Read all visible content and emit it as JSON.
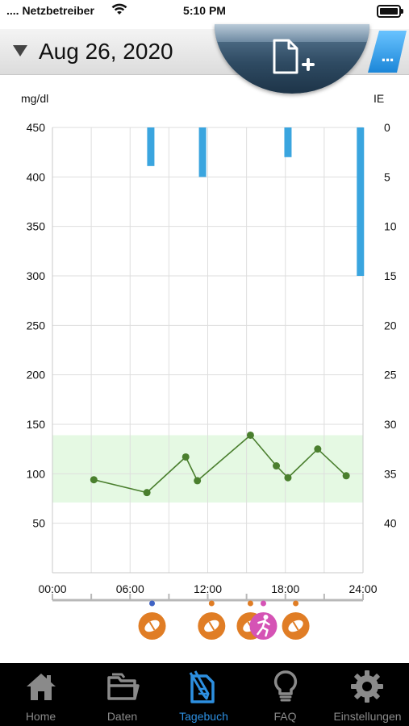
{
  "status_bar": {
    "carrier": ".... Netzbetreiber",
    "time": "5:10 PM"
  },
  "header": {
    "date": "Aug 26, 2020",
    "new_entry_icon": "new-document-plus-icon",
    "more_label": "..."
  },
  "colors": {
    "insulin_bar": "#3aa5df",
    "glucose_line": "#4a7f2e",
    "target_range": "#e5f9e3",
    "food_marker": "#e07d25",
    "activity_marker": "#d553b5",
    "tab_active": "#2d8fe0"
  },
  "chart_data": {
    "type": "line",
    "left_unit": "mg/dl",
    "right_unit": "IE",
    "y_ticks": [
      450,
      400,
      350,
      300,
      250,
      200,
      150,
      100,
      50
    ],
    "y_range": [
      0,
      450
    ],
    "right_ticks": [
      0,
      5,
      10,
      15,
      20,
      25,
      30,
      35,
      40
    ],
    "right_range": [
      0,
      45
    ],
    "right_axis_inverted": true,
    "x_ticks": [
      "00:00",
      "06:00",
      "12:00",
      "18:00",
      "24:00"
    ],
    "x_range_hours": [
      0,
      24
    ],
    "grid": true,
    "target_range": [
      71,
      139
    ],
    "series": [
      {
        "type": "line",
        "x_hours": [
          3.2,
          7.3,
          10.3,
          11.2,
          15.3,
          17.3,
          18.2,
          20.5,
          22.7
        ],
        "values": [
          94,
          81,
          117,
          93,
          139,
          108,
          96,
          125,
          98
        ]
      },
      {
        "type": "bar",
        "axis": "right",
        "x_hours": [
          7.6,
          11.6,
          18.2,
          23.8
        ],
        "values": [
          3.9,
          5,
          3,
          15
        ]
      }
    ],
    "timeline_events": [
      {
        "hour": 7.7,
        "kind": "food",
        "icon": "food-icon",
        "dot": "blue"
      },
      {
        "hour": 12.3,
        "kind": "food",
        "icon": "food-icon",
        "dot": "orange"
      },
      {
        "hour": 15.3,
        "kind": "food",
        "icon": "food-icon",
        "dot": "orange"
      },
      {
        "hour": 16.3,
        "kind": "activity",
        "icon": "running-icon",
        "dot": "pink"
      },
      {
        "hour": 18.8,
        "kind": "food",
        "icon": "food-icon",
        "dot": "orange"
      }
    ]
  },
  "tab_bar": {
    "items": [
      {
        "label": "Home",
        "icon": "home-icon",
        "active": false
      },
      {
        "label": "Daten",
        "icon": "folders-icon",
        "active": false
      },
      {
        "label": "Tagebuch",
        "icon": "diary-edit-icon",
        "active": true
      },
      {
        "label": "FAQ",
        "icon": "lightbulb-icon",
        "active": false
      },
      {
        "label": "Einstellungen",
        "icon": "gear-icon",
        "active": false
      }
    ]
  }
}
